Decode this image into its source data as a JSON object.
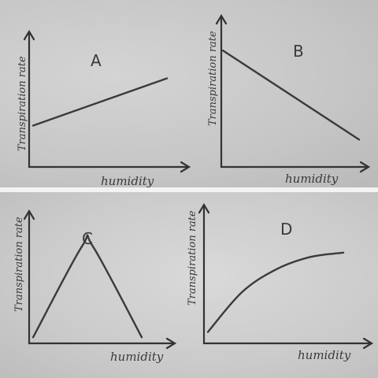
{
  "chart_data": [
    {
      "type": "line",
      "panel_label": "A",
      "xlabel": "humidity",
      "ylabel": "Transpiration rate",
      "x": [
        0,
        1
      ],
      "y": [
        0.35,
        0.75
      ],
      "curve": "linear"
    },
    {
      "type": "line",
      "panel_label": "B",
      "xlabel": "humidity",
      "ylabel": "Transpiration rate",
      "x": [
        0,
        1
      ],
      "y": [
        0.85,
        0.2
      ],
      "curve": "linear"
    },
    {
      "type": "line",
      "panel_label": "C",
      "xlabel": "humidity",
      "ylabel": "Transpiration rate",
      "x": [
        0,
        0.45,
        0.55,
        1
      ],
      "y": [
        0.05,
        0.8,
        0.8,
        0.05
      ],
      "curve": "smooth"
    },
    {
      "type": "line",
      "panel_label": "D",
      "xlabel": "humidity",
      "ylabel": "Transpiration rate",
      "x": [
        0,
        0.25,
        0.5,
        0.75,
        1
      ],
      "y": [
        0.1,
        0.45,
        0.65,
        0.76,
        0.8
      ],
      "curve": "smooth"
    }
  ]
}
